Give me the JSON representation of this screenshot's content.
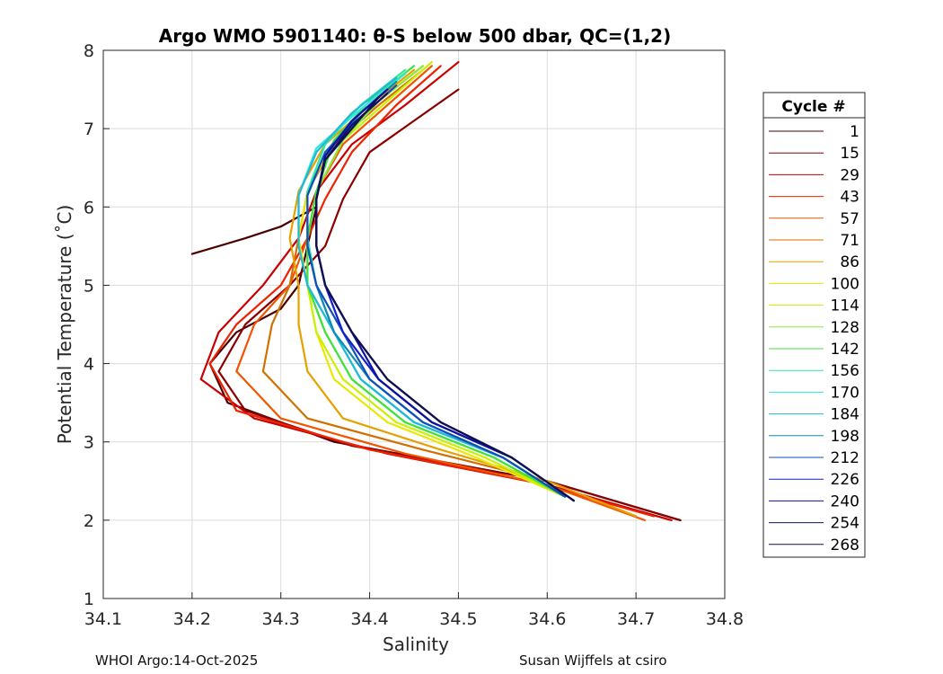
{
  "chart_data": {
    "type": "line",
    "title": "Argo WMO 5901140: θ-S below 500 dbar,  QC=(1,2)",
    "xlabel": "Salinity",
    "ylabel": "Potential Temperature (˚C)",
    "xlim": [
      34.1,
      34.8
    ],
    "ylim": [
      1,
      8
    ],
    "xticks": [
      "34.1",
      "34.2",
      "34.3",
      "34.4",
      "34.5",
      "34.6",
      "34.7",
      "34.8"
    ],
    "yticks": [
      "1",
      "2",
      "3",
      "4",
      "5",
      "6",
      "7",
      "8"
    ],
    "grid": true,
    "legend": {
      "title": "Cycle #",
      "placement": "right",
      "entries": [
        {
          "label": "1",
          "color": "#4a0000"
        },
        {
          "label": "15",
          "color": "#8a0000"
        },
        {
          "label": "29",
          "color": "#c80000"
        },
        {
          "label": "43",
          "color": "#ee2200"
        },
        {
          "label": "57",
          "color": "#f25500"
        },
        {
          "label": "71",
          "color": "#d07000"
        },
        {
          "label": "86",
          "color": "#e6a000"
        },
        {
          "label": "100",
          "color": "#e8e800"
        },
        {
          "label": "114",
          "color": "#c8f000"
        },
        {
          "label": "128",
          "color": "#88e840"
        },
        {
          "label": "142",
          "color": "#40e040"
        },
        {
          "label": "156",
          "color": "#30e8a0"
        },
        {
          "label": "170",
          "color": "#30e8d8"
        },
        {
          "label": "184",
          "color": "#20b8d8"
        },
        {
          "label": "198",
          "color": "#1088b8"
        },
        {
          "label": "212",
          "color": "#1050b8"
        },
        {
          "label": "226",
          "color": "#1020c8"
        },
        {
          "label": "240",
          "color": "#1010a0"
        },
        {
          "label": "254",
          "color": "#101070"
        },
        {
          "label": "268",
          "color": "#101050"
        }
      ]
    },
    "series": [
      {
        "name": "1",
        "x": [
          34.2,
          34.26,
          34.3,
          34.34,
          34.33,
          34.32,
          34.3,
          34.25,
          34.22,
          34.24,
          34.36,
          34.6,
          34.75
        ],
        "y": [
          5.4,
          5.6,
          5.75,
          6.0,
          5.5,
          5.0,
          4.7,
          4.4,
          4.0,
          3.5,
          3.0,
          2.5,
          2.0
        ]
      },
      {
        "name": "15",
        "x": [
          34.5,
          34.45,
          34.4,
          34.37,
          34.35,
          34.31,
          34.26,
          34.23,
          34.26,
          34.38,
          34.6,
          34.75
        ],
        "y": [
          7.5,
          7.1,
          6.7,
          6.1,
          5.5,
          5.0,
          4.5,
          3.9,
          3.4,
          2.95,
          2.5,
          2.0
        ]
      },
      {
        "name": "29",
        "x": [
          34.5,
          34.44,
          34.38,
          34.34,
          34.32,
          34.28,
          34.23,
          34.21,
          34.27,
          34.42,
          34.6,
          34.74
        ],
        "y": [
          7.85,
          7.3,
          6.8,
          6.2,
          5.6,
          5.0,
          4.4,
          3.8,
          3.3,
          2.85,
          2.45,
          2.0
        ]
      },
      {
        "name": "43",
        "x": [
          34.48,
          34.43,
          34.38,
          34.35,
          34.33,
          34.3,
          34.25,
          34.22,
          34.25,
          34.4,
          34.58,
          34.72
        ],
        "y": [
          7.8,
          7.3,
          6.7,
          6.1,
          5.6,
          5.0,
          4.5,
          4.0,
          3.4,
          2.9,
          2.5,
          2.05
        ]
      },
      {
        "name": "57",
        "x": [
          34.47,
          34.42,
          34.37,
          34.34,
          34.33,
          34.31,
          34.27,
          34.25,
          34.3,
          34.44,
          34.6,
          34.71
        ],
        "y": [
          7.8,
          7.3,
          6.8,
          6.2,
          5.6,
          5.0,
          4.5,
          3.9,
          3.3,
          2.85,
          2.45,
          2.0
        ]
      },
      {
        "name": "71",
        "x": [
          34.46,
          34.41,
          34.36,
          34.33,
          34.32,
          34.31,
          34.29,
          34.28,
          34.33,
          34.46,
          34.6,
          34.7
        ],
        "y": [
          7.75,
          7.3,
          6.8,
          6.2,
          5.6,
          5.0,
          4.5,
          3.9,
          3.3,
          2.9,
          2.5,
          2.05
        ]
      },
      {
        "name": "86",
        "x": [
          34.45,
          34.4,
          34.35,
          34.32,
          34.31,
          34.32,
          34.32,
          34.33,
          34.37,
          34.48,
          34.6,
          34.7
        ],
        "y": [
          7.75,
          7.3,
          6.8,
          6.2,
          5.6,
          5.0,
          4.5,
          3.9,
          3.3,
          2.9,
          2.5,
          2.05
        ]
      },
      {
        "name": "100",
        "x": [
          34.46,
          34.41,
          34.36,
          34.33,
          34.32,
          34.33,
          34.34,
          34.36,
          34.42,
          34.52,
          34.62
        ],
        "y": [
          7.8,
          7.35,
          6.85,
          6.2,
          5.6,
          5.0,
          4.4,
          3.8,
          3.25,
          2.8,
          2.3
        ]
      },
      {
        "name": "114",
        "x": [
          34.47,
          34.42,
          34.37,
          34.34,
          34.33,
          34.33,
          34.34,
          34.37,
          34.43,
          34.53,
          34.62
        ],
        "y": [
          7.85,
          7.35,
          6.85,
          6.2,
          5.6,
          5.0,
          4.4,
          3.8,
          3.25,
          2.8,
          2.3
        ]
      },
      {
        "name": "128",
        "x": [
          34.46,
          34.41,
          34.37,
          34.34,
          34.33,
          34.33,
          34.35,
          34.38,
          34.44,
          34.54,
          34.62
        ],
        "y": [
          7.8,
          7.35,
          6.85,
          6.2,
          5.6,
          5.0,
          4.4,
          3.8,
          3.25,
          2.8,
          2.3
        ]
      },
      {
        "name": "142",
        "x": [
          34.45,
          34.4,
          34.36,
          34.34,
          34.33,
          34.33,
          34.35,
          34.38,
          34.44,
          34.54,
          34.62
        ],
        "y": [
          7.8,
          7.35,
          6.85,
          6.2,
          5.6,
          5.0,
          4.4,
          3.8,
          3.25,
          2.8,
          2.3
        ]
      },
      {
        "name": "156",
        "x": [
          34.44,
          34.39,
          34.35,
          34.33,
          34.33,
          34.34,
          34.36,
          34.39,
          34.45,
          34.55,
          34.62
        ],
        "y": [
          7.75,
          7.3,
          6.8,
          6.2,
          5.6,
          5.0,
          4.4,
          3.8,
          3.25,
          2.8,
          2.3
        ]
      },
      {
        "name": "170",
        "x": [
          34.44,
          34.39,
          34.34,
          34.32,
          34.32,
          34.33,
          34.36,
          34.39,
          34.45,
          34.55,
          34.62
        ],
        "y": [
          7.7,
          7.25,
          6.75,
          6.15,
          5.5,
          5.0,
          4.4,
          3.8,
          3.25,
          2.8,
          2.3
        ]
      },
      {
        "name": "184",
        "x": [
          34.43,
          34.38,
          34.34,
          34.32,
          34.32,
          34.33,
          34.36,
          34.39,
          34.45,
          34.55,
          34.62
        ],
        "y": [
          7.65,
          7.2,
          6.7,
          6.15,
          5.5,
          5.0,
          4.4,
          3.8,
          3.25,
          2.8,
          2.3
        ]
      },
      {
        "name": "198",
        "x": [
          34.43,
          34.39,
          34.35,
          34.33,
          34.33,
          34.34,
          34.36,
          34.4,
          34.46,
          34.55,
          34.62
        ],
        "y": [
          7.6,
          7.2,
          6.7,
          6.15,
          5.5,
          5.0,
          4.4,
          3.8,
          3.25,
          2.8,
          2.3
        ]
      },
      {
        "name": "212",
        "x": [
          34.43,
          34.39,
          34.35,
          34.33,
          34.33,
          34.34,
          34.37,
          34.4,
          34.46,
          34.55,
          34.62
        ],
        "y": [
          7.55,
          7.15,
          6.7,
          6.15,
          5.5,
          5.0,
          4.4,
          3.8,
          3.25,
          2.8,
          2.3
        ]
      },
      {
        "name": "226",
        "x": [
          34.42,
          34.38,
          34.35,
          34.34,
          34.34,
          34.35,
          34.37,
          34.41,
          34.47,
          34.56,
          34.63
        ],
        "y": [
          7.5,
          7.1,
          6.65,
          6.1,
          5.5,
          5.0,
          4.4,
          3.8,
          3.25,
          2.8,
          2.25
        ]
      },
      {
        "name": "240",
        "x": [
          34.42,
          34.38,
          34.35,
          34.34,
          34.34,
          34.35,
          34.38,
          34.41,
          34.47,
          34.56,
          34.63
        ],
        "y": [
          7.5,
          7.1,
          6.65,
          6.1,
          5.5,
          5.0,
          4.4,
          3.8,
          3.25,
          2.8,
          2.25
        ]
      },
      {
        "name": "254",
        "x": [
          34.42,
          34.38,
          34.35,
          34.34,
          34.34,
          34.35,
          34.38,
          34.42,
          34.48,
          34.56,
          34.63
        ],
        "y": [
          7.45,
          7.05,
          6.6,
          6.1,
          5.5,
          5.0,
          4.4,
          3.8,
          3.25,
          2.8,
          2.25
        ]
      },
      {
        "name": "268",
        "x": [
          34.41,
          34.38,
          34.35,
          34.34,
          34.34,
          34.35,
          34.38,
          34.42,
          34.48,
          34.56,
          34.63
        ],
        "y": [
          7.4,
          7.0,
          6.6,
          6.1,
          5.5,
          5.0,
          4.4,
          3.8,
          3.25,
          2.8,
          2.25
        ]
      }
    ]
  },
  "footer": {
    "left": "WHOI Argo:14-Oct-2025",
    "right": "Susan Wijffels at csiro"
  }
}
